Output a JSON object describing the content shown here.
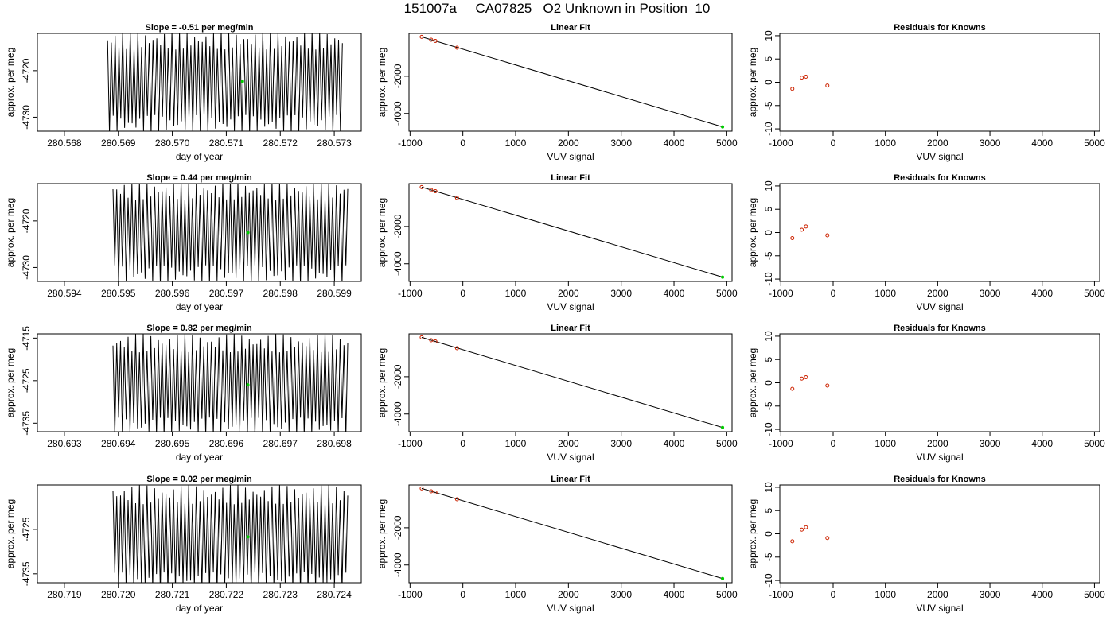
{
  "title": "151007a     CA07825   O2 Unknown in Position  10",
  "colors": {
    "trace": "#000000",
    "unknown_point": "#00cc00",
    "known_point": "#cc2200",
    "fit_line": "#000000"
  },
  "chart_data": [
    {
      "type": "line",
      "panel": "trace",
      "row": 1,
      "title": "Slope =  -0.51  per meg/min",
      "xlabel": "day of year",
      "ylabel": "approx. per meg",
      "xlim": [
        280.5675,
        280.5735
      ],
      "ylim": [
        -4733,
        -4712
      ],
      "xticks": [
        "280.568",
        "280.569",
        "280.570",
        "280.571",
        "280.572",
        "280.573"
      ],
      "xtick_values": [
        280.568,
        280.569,
        280.57,
        280.571,
        280.572,
        280.573
      ],
      "yticks": [
        "-4720",
        "-4730"
      ],
      "ytick_values": [
        -4720,
        -4730
      ],
      "trace": {
        "x_start": 280.5688,
        "x_end": 280.57315,
        "cycles": 62,
        "center": -4722.5,
        "amplitude": 11
      },
      "mean_point": {
        "x": 280.5713,
        "y": -4722.3
      }
    },
    {
      "type": "line",
      "panel": "fit",
      "row": 1,
      "title": "Linear Fit",
      "xlabel": "VUV signal",
      "ylabel": "approx. per meg",
      "xlim": [
        -1020,
        5100
      ],
      "ylim": [
        -4950,
        300
      ],
      "xticks": [
        "-1000",
        "0",
        "1000",
        "2000",
        "3000",
        "4000",
        "5000"
      ],
      "xtick_values": [
        -1000,
        0,
        1000,
        2000,
        3000,
        4000,
        5000
      ],
      "yticks": [
        "-2000",
        "-4000"
      ],
      "ytick_values": [
        -2000,
        -4000
      ],
      "knowns": [
        [
          -780,
          115
        ],
        [
          -600,
          -40
        ],
        [
          -520,
          -105
        ],
        [
          -110,
          -470
        ]
      ],
      "unknown": [
        4920,
        -4722
      ],
      "fit_line": [
        [
          -780,
          115
        ],
        [
          4920,
          -4722
        ]
      ]
    },
    {
      "type": "scatter",
      "panel": "residuals",
      "row": 1,
      "title": "Residuals for Knowns",
      "xlabel": "VUV signal",
      "ylabel": "approx. per meg",
      "xlim": [
        -1020,
        5100
      ],
      "ylim": [
        -10.5,
        10.5
      ],
      "xticks": [
        "-1000",
        "0",
        "1000",
        "2000",
        "3000",
        "4000",
        "5000"
      ],
      "xtick_values": [
        -1000,
        0,
        1000,
        2000,
        3000,
        4000,
        5000
      ],
      "yticks": [
        "10",
        "5",
        "0",
        "-5",
        "-10"
      ],
      "ytick_values": [
        10,
        5,
        0,
        -5,
        -10
      ],
      "residuals": [
        [
          -780,
          -1.4
        ],
        [
          -600,
          1.0
        ],
        [
          -520,
          1.2
        ],
        [
          -110,
          -0.7
        ]
      ]
    },
    {
      "type": "line",
      "panel": "trace",
      "row": 2,
      "title": "Slope =  0.44  per meg/min",
      "xlabel": "day of year",
      "ylabel": "approx. per meg",
      "xlim": [
        280.5935,
        280.5995
      ],
      "ylim": [
        -4733,
        -4712
      ],
      "xticks": [
        "280.594",
        "280.595",
        "280.596",
        "280.597",
        "280.598",
        "280.599"
      ],
      "xtick_values": [
        280.594,
        280.595,
        280.596,
        280.597,
        280.598,
        280.599
      ],
      "yticks": [
        "-4720",
        "-4730"
      ],
      "ytick_values": [
        -4720,
        -4730
      ],
      "trace": {
        "x_start": 280.5949,
        "x_end": 280.59925,
        "cycles": 62,
        "center": -4722.5,
        "amplitude": 11
      },
      "mean_point": {
        "x": 280.5974,
        "y": -4722.5
      }
    },
    {
      "type": "line",
      "panel": "fit",
      "row": 2,
      "title": "Linear Fit",
      "xlabel": "VUV signal",
      "ylabel": "approx. per meg",
      "xlim": [
        -1020,
        5100
      ],
      "ylim": [
        -4950,
        300
      ],
      "xticks": [
        "-1000",
        "0",
        "1000",
        "2000",
        "3000",
        "4000",
        "5000"
      ],
      "xtick_values": [
        -1000,
        0,
        1000,
        2000,
        3000,
        4000,
        5000
      ],
      "yticks": [
        "-2000",
        "-4000"
      ],
      "ytick_values": [
        -2000,
        -4000
      ],
      "knowns": [
        [
          -780,
          115
        ],
        [
          -600,
          -40
        ],
        [
          -520,
          -105
        ],
        [
          -110,
          -470
        ]
      ],
      "unknown": [
        4920,
        -4722
      ],
      "fit_line": [
        [
          -780,
          115
        ],
        [
          4920,
          -4722
        ]
      ]
    },
    {
      "type": "scatter",
      "panel": "residuals",
      "row": 2,
      "title": "Residuals for Knowns",
      "xlabel": "VUV signal",
      "ylabel": "approx. per meg",
      "xlim": [
        -1020,
        5100
      ],
      "ylim": [
        -10.5,
        10.5
      ],
      "xticks": [
        "-1000",
        "0",
        "1000",
        "2000",
        "3000",
        "4000",
        "5000"
      ],
      "xtick_values": [
        -1000,
        0,
        1000,
        2000,
        3000,
        4000,
        5000
      ],
      "yticks": [
        "10",
        "5",
        "0",
        "-5",
        "-10"
      ],
      "ytick_values": [
        10,
        5,
        0,
        -5,
        -10
      ],
      "residuals": [
        [
          -780,
          -1.2
        ],
        [
          -600,
          0.6
        ],
        [
          -520,
          1.3
        ],
        [
          -110,
          -0.6
        ]
      ]
    },
    {
      "type": "line",
      "panel": "trace",
      "row": 3,
      "title": "Slope =  0.82  per meg/min",
      "xlabel": "day of year",
      "ylabel": "approx. per meg",
      "xlim": [
        280.6925,
        280.6985
      ],
      "ylim": [
        -4737,
        -4714
      ],
      "xticks": [
        "280.693",
        "280.694",
        "280.695",
        "280.696",
        "280.697",
        "280.698"
      ],
      "xtick_values": [
        280.693,
        280.694,
        280.695,
        280.696,
        280.697,
        280.698
      ],
      "yticks": [
        "-4715",
        "-4725",
        "-4735"
      ],
      "ytick_values": [
        -4715,
        -4725,
        -4735
      ],
      "trace": {
        "x_start": 280.6939,
        "x_end": 280.69825,
        "cycles": 62,
        "center": -4726,
        "amplitude": 12
      },
      "mean_point": {
        "x": 280.6964,
        "y": -4726.0
      }
    },
    {
      "type": "line",
      "panel": "fit",
      "row": 3,
      "title": "Linear Fit",
      "xlabel": "VUV signal",
      "ylabel": "approx. per meg",
      "xlim": [
        -1020,
        5100
      ],
      "ylim": [
        -4950,
        300
      ],
      "xticks": [
        "-1000",
        "0",
        "1000",
        "2000",
        "3000",
        "4000",
        "5000"
      ],
      "xtick_values": [
        -1000,
        0,
        1000,
        2000,
        3000,
        4000,
        5000
      ],
      "yticks": [
        "-2000",
        "-4000"
      ],
      "ytick_values": [
        -2000,
        -4000
      ],
      "knowns": [
        [
          -780,
          115
        ],
        [
          -600,
          -40
        ],
        [
          -520,
          -105
        ],
        [
          -110,
          -470
        ]
      ],
      "unknown": [
        4920,
        -4726
      ],
      "fit_line": [
        [
          -780,
          115
        ],
        [
          4920,
          -4726
        ]
      ]
    },
    {
      "type": "scatter",
      "panel": "residuals",
      "row": 3,
      "title": "Residuals for Knowns",
      "xlabel": "VUV signal",
      "ylabel": "approx. per meg",
      "xlim": [
        -1020,
        5100
      ],
      "ylim": [
        -10.5,
        10.5
      ],
      "xticks": [
        "-1000",
        "0",
        "1000",
        "2000",
        "3000",
        "4000",
        "5000"
      ],
      "xtick_values": [
        -1000,
        0,
        1000,
        2000,
        3000,
        4000,
        5000
      ],
      "yticks": [
        "10",
        "5",
        "0",
        "-5",
        "-10"
      ],
      "ytick_values": [
        10,
        5,
        0,
        -5,
        -10
      ],
      "residuals": [
        [
          -780,
          -1.3
        ],
        [
          -600,
          0.9
        ],
        [
          -520,
          1.2
        ],
        [
          -110,
          -0.6
        ]
      ]
    },
    {
      "type": "line",
      "panel": "trace",
      "row": 4,
      "title": "Slope =  0.02  per meg/min",
      "xlabel": "day of year",
      "ylabel": "approx. per meg",
      "xlim": [
        280.7185,
        280.7245
      ],
      "ylim": [
        -4737,
        -4715
      ],
      "xticks": [
        "280.719",
        "280.720",
        "280.721",
        "280.722",
        "280.723",
        "280.724"
      ],
      "xtick_values": [
        280.719,
        280.72,
        280.721,
        280.722,
        280.723,
        280.724
      ],
      "yticks": [
        "-4725",
        "-4735"
      ],
      "ytick_values": [
        -4725,
        -4735
      ],
      "trace": {
        "x_start": 280.7199,
        "x_end": 280.72425,
        "cycles": 62,
        "center": -4727,
        "amplitude": 12
      },
      "mean_point": {
        "x": 280.7224,
        "y": -4726.7
      }
    },
    {
      "type": "line",
      "panel": "fit",
      "row": 4,
      "title": "Linear Fit",
      "xlabel": "VUV signal",
      "ylabel": "approx. per meg",
      "xlim": [
        -1020,
        5100
      ],
      "ylim": [
        -4950,
        300
      ],
      "xticks": [
        "-1000",
        "0",
        "1000",
        "2000",
        "3000",
        "4000",
        "5000"
      ],
      "xtick_values": [
        -1000,
        0,
        1000,
        2000,
        3000,
        4000,
        5000
      ],
      "yticks": [
        "-2000",
        "-4000"
      ],
      "ytick_values": [
        -2000,
        -4000
      ],
      "knowns": [
        [
          -780,
          115
        ],
        [
          -600,
          -40
        ],
        [
          -520,
          -105
        ],
        [
          -110,
          -470
        ]
      ],
      "unknown": [
        4920,
        -4727
      ],
      "fit_line": [
        [
          -780,
          115
        ],
        [
          4920,
          -4727
        ]
      ]
    },
    {
      "type": "scatter",
      "panel": "residuals",
      "row": 4,
      "title": "Residuals for Knowns",
      "xlabel": "VUV signal",
      "ylabel": "approx. per meg",
      "xlim": [
        -1020,
        5100
      ],
      "ylim": [
        -10.5,
        10.5
      ],
      "xticks": [
        "-1000",
        "0",
        "1000",
        "2000",
        "3000",
        "4000",
        "5000"
      ],
      "xtick_values": [
        -1000,
        0,
        1000,
        2000,
        3000,
        4000,
        5000
      ],
      "yticks": [
        "10",
        "5",
        "0",
        "-5",
        "-10"
      ],
      "ytick_values": [
        10,
        5,
        0,
        -5,
        -10
      ],
      "residuals": [
        [
          -780,
          -1.6
        ],
        [
          -600,
          0.9
        ],
        [
          -520,
          1.4
        ],
        [
          -110,
          -0.9
        ]
      ]
    }
  ]
}
